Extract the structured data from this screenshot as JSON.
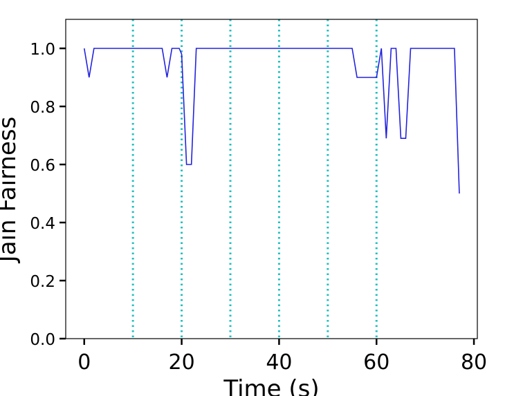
{
  "chart_data": {
    "type": "line",
    "title": "",
    "xlabel": "Time (s)",
    "ylabel": "Jain Fairness",
    "xlim": [
      -3.8,
      80.7
    ],
    "ylim": [
      0.0,
      1.1
    ],
    "x_ticks": [
      0,
      20,
      40,
      60,
      80
    ],
    "y_ticks": [
      0.0,
      0.2,
      0.4,
      0.6,
      0.8,
      1.0
    ],
    "x_tick_labels": [
      "0",
      "20",
      "40",
      "60",
      "80"
    ],
    "y_tick_labels": [
      "0.0",
      "0.2",
      "0.4",
      "0.6",
      "0.8",
      "1.0"
    ],
    "grid": false,
    "legend": null,
    "vertical_lines": {
      "x": [
        10,
        20,
        30,
        40,
        50,
        60
      ],
      "style": "dotted",
      "color": "#1fbfbf"
    },
    "series": [
      {
        "color": "#2222dd",
        "x": [
          0,
          1,
          2,
          16,
          17,
          18,
          19.5,
          20,
          21,
          22,
          23,
          55,
          56,
          60,
          61,
          62,
          63,
          64,
          65,
          66,
          67,
          76,
          77
        ],
        "y": [
          1.0,
          0.9,
          1.0,
          1.0,
          0.9,
          1.0,
          1.0,
          0.98,
          0.6,
          0.6,
          1.0,
          1.0,
          0.9,
          0.9,
          1.0,
          0.69,
          1.0,
          1.0,
          0.69,
          0.69,
          1.0,
          1.0,
          0.5
        ]
      }
    ]
  }
}
